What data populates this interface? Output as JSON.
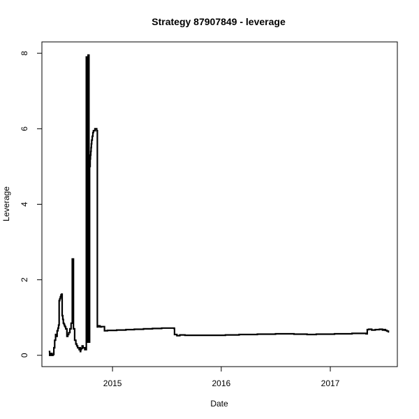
{
  "chart_data": {
    "type": "line",
    "title": "Strategy 87907849 - leverage",
    "xlabel": "Date",
    "ylabel": "Leverage",
    "xlim": [
      "2014-05-09",
      "2017-08-14"
    ],
    "ylim": [
      -0.3,
      8.3
    ],
    "x_ticks": [
      {
        "date": "2015-01-01",
        "label": "2015"
      },
      {
        "date": "2016-01-01",
        "label": "2016"
      },
      {
        "date": "2017-01-01",
        "label": "2017"
      }
    ],
    "y_ticks": [
      {
        "value": 0,
        "label": "0"
      },
      {
        "value": 2,
        "label": "2"
      },
      {
        "value": 4,
        "label": "4"
      },
      {
        "value": 6,
        "label": "6"
      },
      {
        "value": 8,
        "label": "8"
      }
    ],
    "grid": false,
    "line_color": "#000000",
    "series": [
      {
        "step": true,
        "x": [
          "2014-06-01",
          "2014-06-04",
          "2014-06-08",
          "2014-06-12",
          "2014-06-15",
          "2014-06-18",
          "2014-06-21",
          "2014-06-24",
          "2014-06-26",
          "2014-06-29",
          "2014-07-02",
          "2014-07-04",
          "2014-07-06",
          "2014-07-08",
          "2014-07-10",
          "2014-07-12",
          "2014-07-14",
          "2014-07-16",
          "2014-07-18",
          "2014-07-20",
          "2014-07-22",
          "2014-07-24",
          "2014-07-26",
          "2014-07-28",
          "2014-08-01",
          "2014-08-04",
          "2014-08-07",
          "2014-08-11",
          "2014-08-15",
          "2014-08-19",
          "2014-08-23",
          "2014-08-27",
          "2014-08-31",
          "2014-09-03",
          "2014-09-06",
          "2014-09-09",
          "2014-09-11",
          "2014-09-13",
          "2014-09-14",
          "2014-09-15",
          "2014-09-16",
          "2014-09-18",
          "2014-09-21",
          "2014-09-24",
          "2014-09-27",
          "2014-09-30",
          "2014-10-03",
          "2014-10-05",
          "2014-10-06",
          "2014-10-08",
          "2014-10-10",
          "2014-10-11",
          "2014-10-12",
          "2014-10-13",
          "2014-10-14",
          "2014-10-15",
          "2014-10-16",
          "2014-10-17",
          "2014-10-18",
          "2014-10-19",
          "2014-10-20",
          "2014-10-21",
          "2014-10-22",
          "2014-10-23",
          "2014-10-25",
          "2014-10-27",
          "2014-10-29",
          "2014-10-31",
          "2014-11-03",
          "2014-11-06",
          "2014-11-09",
          "2014-11-11",
          "2014-11-13",
          "2014-11-14",
          "2014-11-20",
          "2014-11-25",
          "2014-12-05",
          "2014-12-15",
          "2015-01-15",
          "2015-02-15",
          "2015-03-15",
          "2015-04-15",
          "2015-05-15",
          "2015-06-15",
          "2015-07-15",
          "2015-07-27",
          "2015-07-28",
          "2015-08-05",
          "2015-08-15",
          "2015-09-01",
          "2016-01-15",
          "2016-03-01",
          "2016-05-01",
          "2016-07-01",
          "2016-09-01",
          "2016-10-15",
          "2016-11-15",
          "2017-01-15",
          "2017-03-15",
          "2017-05-01",
          "2017-05-05",
          "2017-05-10",
          "2017-05-20",
          "2017-06-01",
          "2017-06-15",
          "2017-06-25",
          "2017-07-01",
          "2017-07-05",
          "2017-07-10",
          "2017-07-15"
        ],
        "y": [
          0.1,
          0.0,
          0.05,
          0.0,
          0.02,
          0.2,
          0.4,
          0.55,
          0.5,
          0.65,
          0.72,
          0.8,
          1.45,
          1.5,
          1.55,
          1.6,
          1.62,
          1.05,
          0.95,
          0.85,
          0.82,
          0.78,
          0.75,
          0.7,
          0.5,
          0.55,
          0.6,
          0.7,
          0.85,
          2.55,
          0.7,
          0.4,
          0.3,
          0.25,
          0.2,
          0.2,
          0.15,
          0.2,
          0.2,
          0.1,
          0.15,
          0.18,
          0.25,
          0.2,
          0.2,
          0.15,
          0.15,
          7.9,
          0.4,
          7.8,
          0.35,
          7.95,
          7.9,
          7.95,
          0.4,
          0.35,
          5.0,
          5.0,
          5.2,
          5.3,
          5.4,
          5.5,
          5.6,
          5.7,
          5.8,
          5.9,
          5.95,
          5.95,
          6.0,
          6.0,
          5.95,
          0.75,
          0.75,
          0.78,
          0.75,
          0.76,
          0.65,
          0.66,
          0.67,
          0.68,
          0.69,
          0.7,
          0.71,
          0.72,
          0.72,
          0.71,
          0.55,
          0.52,
          0.54,
          0.53,
          0.54,
          0.55,
          0.56,
          0.57,
          0.56,
          0.55,
          0.56,
          0.57,
          0.58,
          0.57,
          0.68,
          0.69,
          0.67,
          0.68,
          0.69,
          0.67,
          0.68,
          0.66,
          0.64,
          0.6
        ]
      }
    ]
  }
}
